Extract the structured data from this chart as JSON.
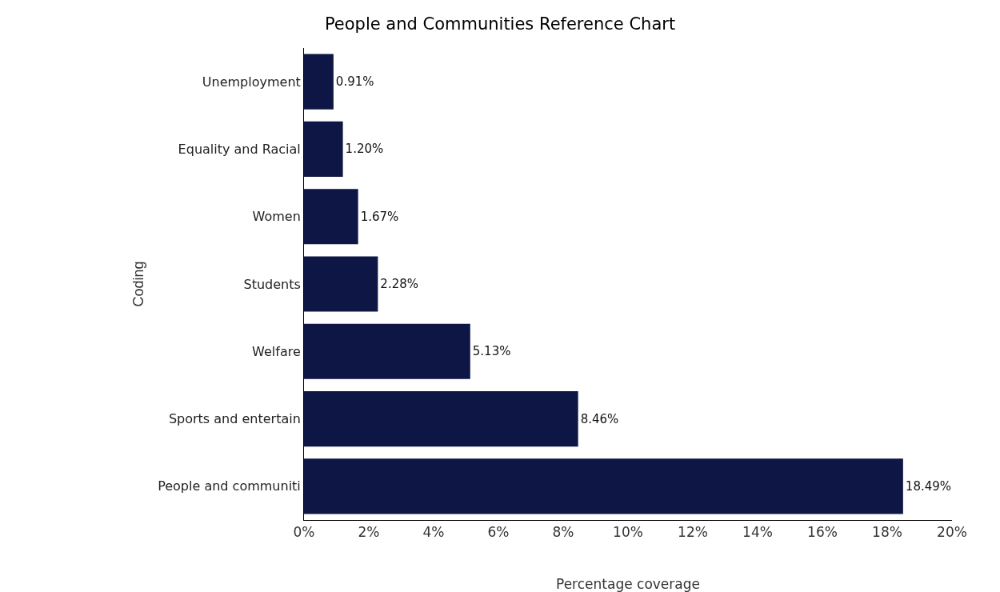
{
  "chart_data": {
    "type": "bar",
    "orientation": "horizontal",
    "title": "People and Communities Reference Chart",
    "xlabel": "Percentage coverage",
    "ylabel": "Coding",
    "categories": [
      "Unemployment",
      "Equality and Racial",
      "Women",
      "Students",
      "Welfare",
      "Sports and entertain",
      "People and communiti"
    ],
    "values": [
      0.91,
      1.2,
      1.67,
      2.28,
      5.13,
      8.46,
      18.49
    ],
    "value_labels": [
      "0.91%",
      "1.20%",
      "1.67%",
      "2.28%",
      "5.13%",
      "8.46%",
      "18.49%"
    ],
    "color": "#0d1645",
    "xlim": [
      0,
      20
    ],
    "xticks": [
      {
        "value": 0,
        "label": "0%"
      },
      {
        "value": 2,
        "label": "2%"
      },
      {
        "value": 4,
        "label": "4%"
      },
      {
        "value": 6,
        "label": "6%"
      },
      {
        "value": 8,
        "label": "8%"
      },
      {
        "value": 10,
        "label": "10%"
      },
      {
        "value": 12,
        "label": "12%"
      },
      {
        "value": 14,
        "label": "14%"
      },
      {
        "value": 16,
        "label": "16%"
      },
      {
        "value": 18,
        "label": "18%"
      },
      {
        "value": 20,
        "label": "20%"
      }
    ],
    "grid": false,
    "legend": false
  }
}
